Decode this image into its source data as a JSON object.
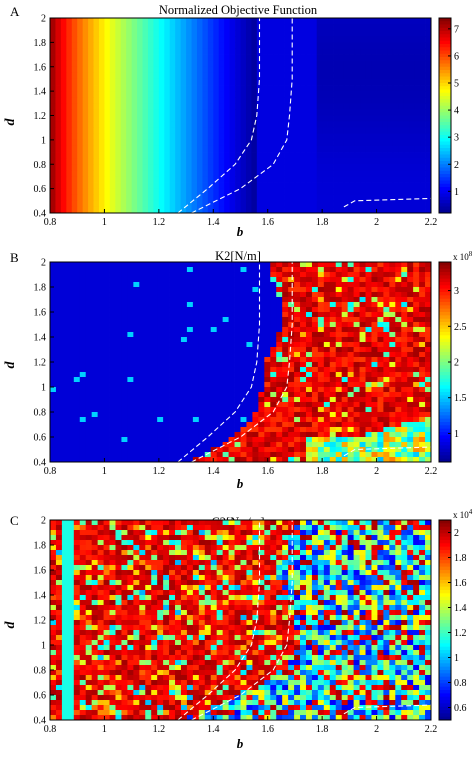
{
  "chart_data": [
    {
      "type": "heatmap",
      "panel_letter": "A",
      "title": "Normalized Objective Function",
      "xlabel": "b",
      "ylabel": "d",
      "xlim": [
        0.8,
        2.2
      ],
      "ylim": [
        0.4,
        2.0
      ],
      "x_ticks": [
        "0.8",
        "1",
        "1.2",
        "1.4",
        "1.6",
        "1.8",
        "2",
        "2.2"
      ],
      "y_ticks": [
        "0.4",
        "0.6",
        "0.8",
        "1",
        "1.2",
        "1.4",
        "1.6",
        "1.8",
        "2"
      ],
      "colorbar": {
        "ticks": [
          "1",
          "2",
          "3",
          "4",
          "5",
          "6",
          "7"
        ],
        "min": 0.2,
        "max": 7.4,
        "exponent": ""
      },
      "pattern": "gradient-x",
      "colormap": [
        "#00008f",
        "#0000ff",
        "#0080ff",
        "#00ffff",
        "#80ff80",
        "#ffff00",
        "#ff8000",
        "#ff0000",
        "#800000"
      ]
    },
    {
      "type": "heatmap",
      "panel_letter": "B",
      "title": "K2[N/m]",
      "xlabel": "b",
      "ylabel": "d",
      "xlim": [
        0.8,
        2.2
      ],
      "ylim": [
        0.4,
        2.0
      ],
      "x_ticks": [
        "0.8",
        "1",
        "1.2",
        "1.4",
        "1.6",
        "1.8",
        "2",
        "2.2"
      ],
      "y_ticks": [
        "0.4",
        "0.6",
        "0.8",
        "1",
        "1.2",
        "1.4",
        "1.6",
        "1.8",
        "2"
      ],
      "colorbar": {
        "ticks": [
          "1",
          "1.5",
          "2",
          "2.5",
          "3"
        ],
        "min": 0.6,
        "max": 3.4,
        "exponent": "x 10^8"
      },
      "pattern": "region-split",
      "colormap": [
        "#00008f",
        "#0000ff",
        "#0080ff",
        "#00ffff",
        "#80ff80",
        "#ffff00",
        "#ff8000",
        "#ff0000",
        "#800000"
      ]
    },
    {
      "type": "heatmap",
      "panel_letter": "C",
      "title": "C2[N.s/m]",
      "xlabel": "b",
      "ylabel": "d",
      "xlim": [
        0.8,
        2.2
      ],
      "ylim": [
        0.4,
        2.0
      ],
      "x_ticks": [
        "0.8",
        "1",
        "1.2",
        "1.4",
        "1.6",
        "1.8",
        "2",
        "2.2"
      ],
      "y_ticks": [
        "0.4",
        "0.6",
        "0.8",
        "1",
        "1.2",
        "1.4",
        "1.6",
        "1.8",
        "2"
      ],
      "colorbar": {
        "ticks": [
          "0.6",
          "0.8",
          "1",
          "1.2",
          "1.4",
          "1.6",
          "1.8",
          "2"
        ],
        "min": 0.5,
        "max": 2.1,
        "exponent": "x 10^4"
      },
      "pattern": "region-noisy",
      "colormap": [
        "#00008f",
        "#0000ff",
        "#0080ff",
        "#00ffff",
        "#80ff80",
        "#ffff00",
        "#ff8000",
        "#ff0000",
        "#800000"
      ]
    }
  ],
  "boundary_lines": {
    "dashed_left": [
      [
        1.27,
        0.4
      ],
      [
        1.38,
        0.6
      ],
      [
        1.48,
        0.8
      ],
      [
        1.54,
        1.0
      ],
      [
        1.56,
        1.2
      ],
      [
        1.57,
        1.5
      ],
      [
        1.57,
        2.0
      ]
    ],
    "dashed_right": [
      [
        1.32,
        0.4
      ],
      [
        1.5,
        0.6
      ],
      [
        1.62,
        0.8
      ],
      [
        1.67,
        1.0
      ],
      [
        1.68,
        1.2
      ],
      [
        1.69,
        1.5
      ],
      [
        1.69,
        2.0
      ]
    ],
    "dashed_corner": [
      [
        1.88,
        0.45
      ],
      [
        1.92,
        0.5
      ],
      [
        2.2,
        0.52
      ]
    ]
  }
}
